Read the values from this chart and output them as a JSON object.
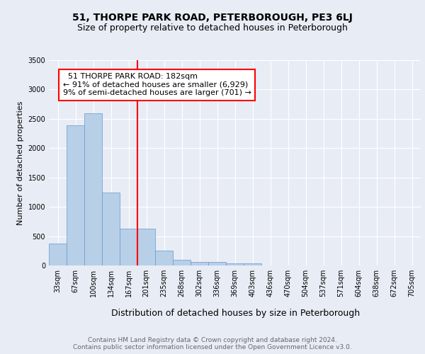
{
  "title1": "51, THORPE PARK ROAD, PETERBOROUGH, PE3 6LJ",
  "title2": "Size of property relative to detached houses in Peterborough",
  "xlabel": "Distribution of detached houses by size in Peterborough",
  "ylabel": "Number of detached properties",
  "categories": [
    "33sqm",
    "67sqm",
    "100sqm",
    "134sqm",
    "167sqm",
    "201sqm",
    "235sqm",
    "268sqm",
    "302sqm",
    "336sqm",
    "369sqm",
    "403sqm",
    "436sqm",
    "470sqm",
    "504sqm",
    "537sqm",
    "571sqm",
    "604sqm",
    "638sqm",
    "672sqm",
    "705sqm"
  ],
  "values": [
    370,
    2390,
    2590,
    1240,
    630,
    630,
    255,
    100,
    60,
    55,
    40,
    40,
    0,
    0,
    0,
    0,
    0,
    0,
    0,
    0,
    0
  ],
  "bar_color": "#b8cfe8",
  "bar_edge_color": "#6699cc",
  "property_line_x": 4.5,
  "annotation_text": "  51 THORPE PARK ROAD: 182sqm\n← 91% of detached houses are smaller (6,929)\n9% of semi-detached houses are larger (701) →",
  "annotation_box_color": "white",
  "annotation_box_edge_color": "red",
  "ylim": [
    0,
    3500
  ],
  "yticks": [
    0,
    500,
    1000,
    1500,
    2000,
    2500,
    3000,
    3500
  ],
  "footer_text": "Contains HM Land Registry data © Crown copyright and database right 2024.\nContains public sector information licensed under the Open Government Licence v3.0.",
  "background_color": "#e8ecf5",
  "plot_background_color": "#e8ecf5",
  "grid_color": "white",
  "title1_fontsize": 10,
  "title2_fontsize": 9,
  "xlabel_fontsize": 9,
  "ylabel_fontsize": 8,
  "tick_fontsize": 7,
  "annotation_fontsize": 8,
  "footer_fontsize": 6.5
}
